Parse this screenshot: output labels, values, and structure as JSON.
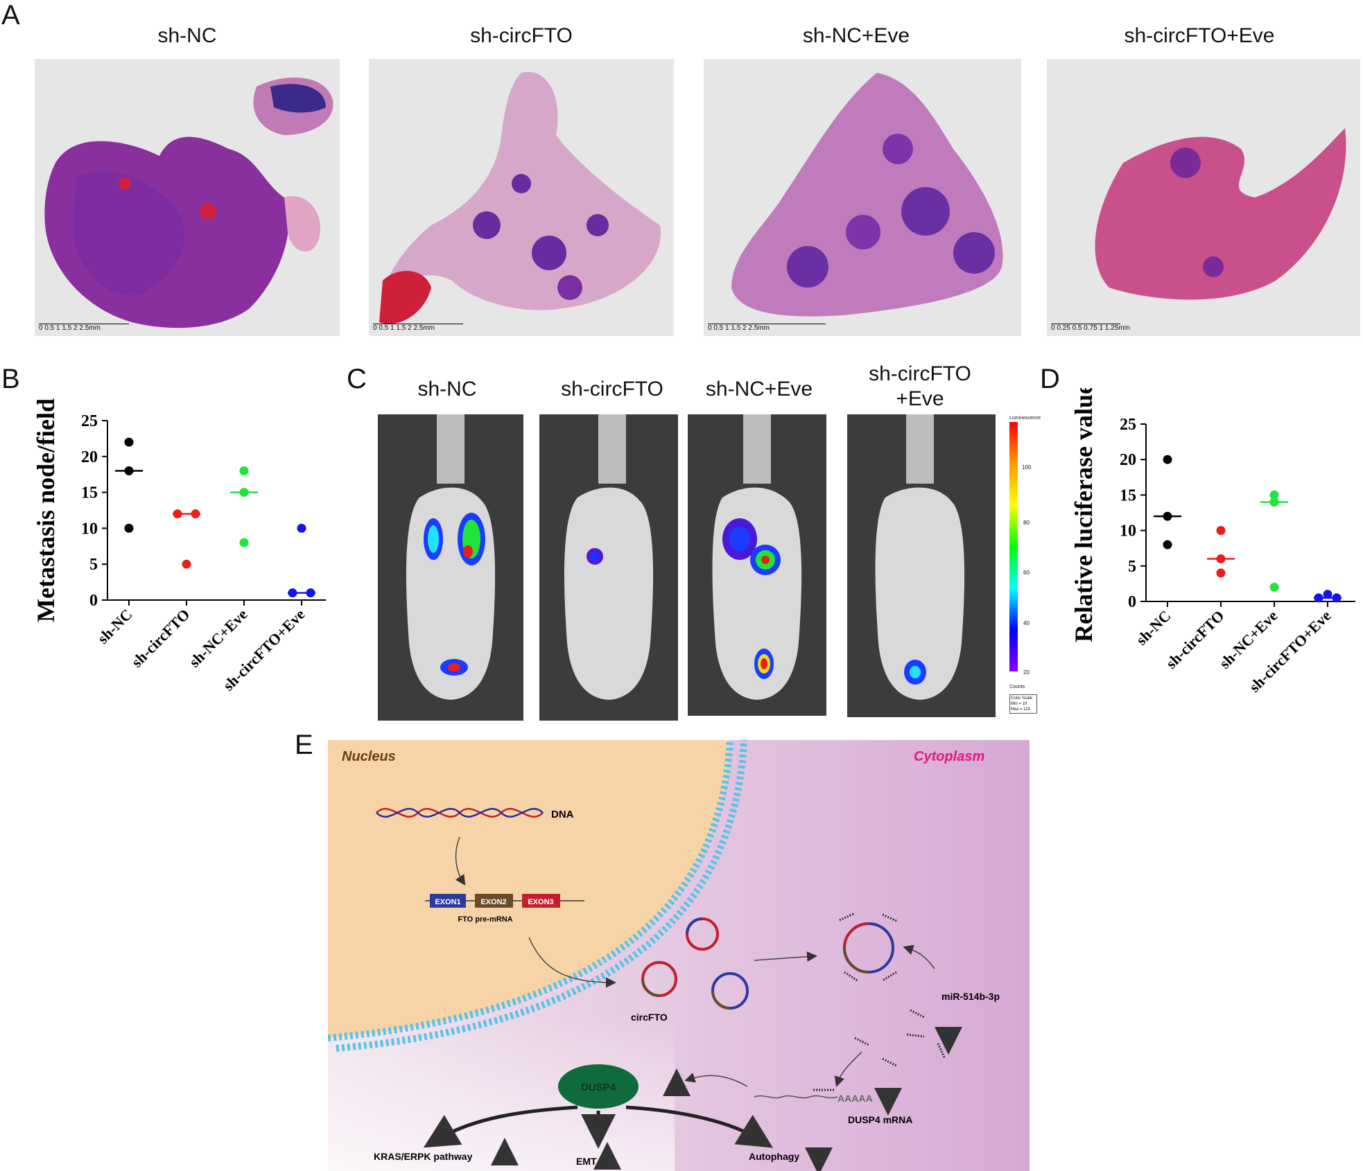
{
  "panel_letters": {
    "a": "A",
    "b": "B",
    "c": "C",
    "d": "D",
    "e": "E"
  },
  "panel_a": {
    "labels": [
      "sh-NC",
      "sh-circFTO",
      "sh-NC+Eve",
      "sh-circFTO+Eve"
    ],
    "scalebars": [
      {
        "ticks": "0   0.5   1   1.5   2   2.5mm"
      },
      {
        "ticks": "0   0.5   1   1.5   2   2.5mm"
      },
      {
        "ticks": "0   0.5   1   1.5   2   2.5mm"
      },
      {
        "ticks": "0  0.25  0.5  0.75   1   1.25mm"
      }
    ]
  },
  "panel_c": {
    "labels": [
      "sh-NC",
      "sh-circFTO",
      "sh-NC+Eve"
    ],
    "label4_line1": "sh-circFTO",
    "label4_line2": "+Eve",
    "colorbar": {
      "title": "Luminescence",
      "ticks": [
        "100",
        "80",
        "60",
        "40",
        "20"
      ],
      "counts": "Counts",
      "scale_title": "Color Scale",
      "min": "Min = 19",
      "max": "Max = 119"
    }
  },
  "colors": {
    "black": "#000000",
    "red": "#ee1c1c",
    "green": "#22e33a",
    "blue": "#1414e6"
  },
  "chart_data": [
    {
      "type": "scatter",
      "panel": "B",
      "ylabel": "Metastasis node/field",
      "ylim": [
        0,
        25
      ],
      "yticks": [
        "0",
        "5",
        "10",
        "15",
        "20",
        "25"
      ],
      "categories": [
        "sh-NC",
        "sh-circFTO",
        "sh-NC+Eve",
        "sh-circFTO+Eve"
      ],
      "series": [
        {
          "points": [
            22,
            18,
            10
          ],
          "mean": 18,
          "color": "#000000"
        },
        {
          "points": [
            12,
            12,
            5
          ],
          "mean": 12,
          "color": "#ee1c1c"
        },
        {
          "points": [
            18,
            15,
            8
          ],
          "mean": 15,
          "color": "#22e33a"
        },
        {
          "points": [
            10,
            1,
            1
          ],
          "mean": 1,
          "color": "#1414e6"
        }
      ]
    },
    {
      "type": "scatter",
      "panel": "D",
      "ylabel": "Relative luciferase value",
      "ylim": [
        0,
        25
      ],
      "yticks": [
        "0",
        "5",
        "10",
        "15",
        "20",
        "25"
      ],
      "categories": [
        "sh-NC",
        "sh-circFTO",
        "sh-NC+Eve",
        "sh-circFTO+Eve"
      ],
      "series": [
        {
          "points": [
            20,
            12,
            8
          ],
          "mean": 12,
          "color": "#000000"
        },
        {
          "points": [
            10,
            6,
            4
          ],
          "mean": 6,
          "color": "#ee1c1c"
        },
        {
          "points": [
            15,
            14,
            2
          ],
          "mean": 14,
          "color": "#22e33a"
        },
        {
          "points": [
            1,
            0.5,
            0.5
          ],
          "mean": 0.5,
          "color": "#1414e6"
        }
      ]
    }
  ],
  "panel_e": {
    "nucleus": "Nucleus",
    "cytoplasm": "Cytoplasm",
    "dna": "DNA",
    "exons": [
      "EXON1",
      "EXON2",
      "EXON3"
    ],
    "pre_mrna": "FTO pre-mRNA",
    "circ": "circFTO",
    "mir": "miR-514b-3p",
    "dusp4": "DUSP4",
    "polya": "AAAAA",
    "dusp4_mrna": "DUSP4 mRNA",
    "kras": "KRAS/ERPK pathway",
    "emt": "EMT",
    "autophagy": "Autophagy"
  }
}
